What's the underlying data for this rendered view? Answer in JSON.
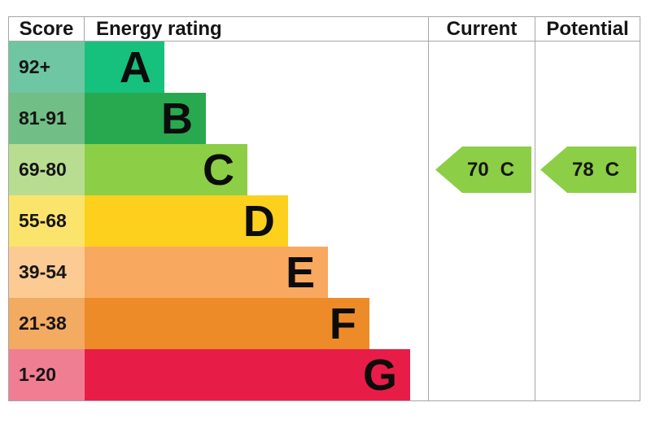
{
  "header": {
    "score": "Score",
    "energy_rating": "Energy rating",
    "current": "Current",
    "potential": "Potential"
  },
  "chart_data": {
    "type": "bar",
    "title": "EPC energy efficiency rating chart",
    "categories": [
      "A",
      "B",
      "C",
      "D",
      "E",
      "F",
      "G"
    ],
    "bands": [
      {
        "letter": "A",
        "range": "92+",
        "bar_color": "#16c17e",
        "range_bg": "#6fc6a2",
        "bar_width": "23.2%"
      },
      {
        "letter": "B",
        "range": "81-91",
        "bar_color": "#28a94f",
        "range_bg": "#71be86",
        "bar_width": "35.3%"
      },
      {
        "letter": "C",
        "range": "69-80",
        "bar_color": "#8cce45",
        "range_bg": "#b8dd90",
        "bar_width": "47.4%"
      },
      {
        "letter": "D",
        "range": "55-68",
        "bar_color": "#fdd01e",
        "range_bg": "#fbe46c",
        "bar_width": "59.2%"
      },
      {
        "letter": "E",
        "range": "39-54",
        "bar_color": "#f9a85f",
        "range_bg": "#fcca93",
        "bar_width": "70.9%"
      },
      {
        "letter": "F",
        "range": "21-38",
        "bar_color": "#ee8b29",
        "range_bg": "#f3aa61",
        "bar_width": "82.9%"
      },
      {
        "letter": "G",
        "range": "1-20",
        "bar_color": "#e81d47",
        "range_bg": "#f07e93",
        "bar_width": "94.8%"
      }
    ],
    "current": {
      "score": "70",
      "band": "C",
      "arrow_color": "#8cce45"
    },
    "potential": {
      "score": "78",
      "band": "C",
      "arrow_color": "#8cce45"
    }
  }
}
